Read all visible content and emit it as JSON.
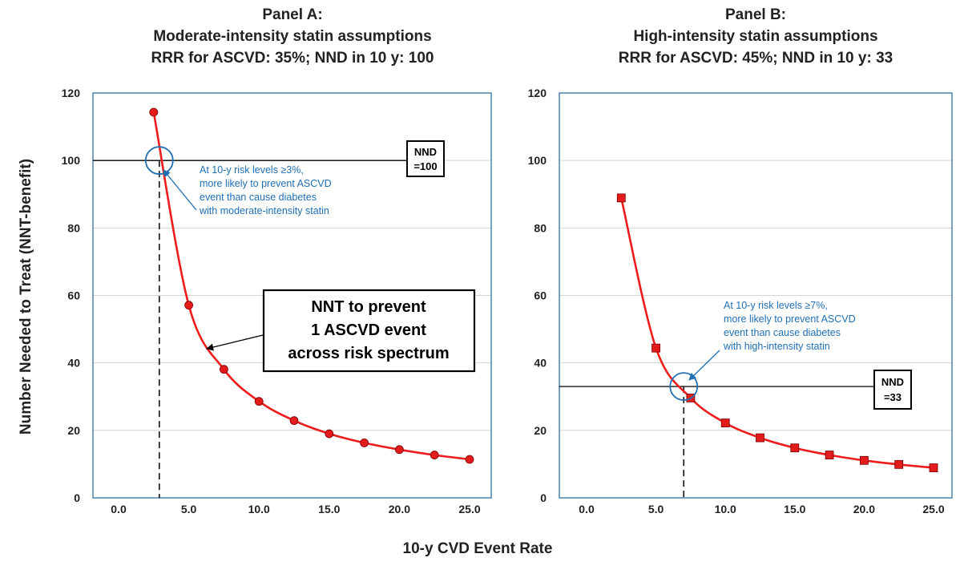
{
  "chart_data": [
    {
      "type": "line",
      "title_lines": [
        "Panel A:",
        "Moderate-intensity statin assumptions",
        "RRR for ASCVD: 35%; NND in 10 y: 100"
      ],
      "xlabel": "10-y CVD Event Rate",
      "ylabel": "Number Needed to Treat (NNT-benefit)",
      "xlim": [
        -2.5,
        26.5
      ],
      "ylim": [
        0,
        120
      ],
      "x_ticks": [
        0,
        5,
        10,
        15,
        20,
        25
      ],
      "x_tick_labels": [
        "0.0",
        "5.0",
        "10.0",
        "15.0",
        "20.0",
        "25.0"
      ],
      "y_ticks": [
        0,
        20,
        40,
        60,
        80,
        100,
        120
      ],
      "y_tick_labels": [
        "0",
        "20",
        "40",
        "60",
        "80",
        "100",
        "120"
      ],
      "grid": true,
      "marker": "circle",
      "series": [
        {
          "x": [
            2.5,
            5.0,
            7.5,
            10.0,
            12.5,
            15.0,
            17.5,
            20.0,
            22.5,
            25.0
          ],
          "y": [
            114.3,
            57.1,
            38.1,
            28.6,
            22.9,
            19.0,
            16.3,
            14.3,
            12.7,
            11.4
          ]
        }
      ],
      "reference_line": {
        "y": 100,
        "label_lines": [
          "NND",
          "=100"
        ]
      },
      "crossover": {
        "x": 2.9,
        "y": 100
      },
      "callout_lines": [
        "At 10-y risk levels ≥3%,",
        "more likely to prevent ASCVD",
        "event than cause diabetes",
        "with moderate-intensity statin"
      ],
      "box_annotation_lines": [
        "NNT to prevent",
        "1 ASCVD event",
        "across risk spectrum"
      ]
    },
    {
      "type": "line",
      "title_lines": [
        "Panel B:",
        "High-intensity statin assumptions",
        "RRR for ASCVD: 45%; NND in 10 y: 33"
      ],
      "xlim": [
        -2.5,
        26.5
      ],
      "ylim": [
        0,
        120
      ],
      "x_ticks": [
        0,
        5,
        10,
        15,
        20,
        25
      ],
      "x_tick_labels": [
        "0.0",
        "5.0",
        "10.0",
        "15.0",
        "20.0",
        "25.0"
      ],
      "y_ticks": [
        0,
        20,
        40,
        60,
        80,
        100,
        120
      ],
      "y_tick_labels": [
        "0",
        "20",
        "40",
        "60",
        "80",
        "100",
        "120"
      ],
      "grid": true,
      "marker": "square",
      "series": [
        {
          "x": [
            2.5,
            5.0,
            7.5,
            10.0,
            12.5,
            15.0,
            17.5,
            20.0,
            22.5,
            25.0
          ],
          "y": [
            88.9,
            44.4,
            29.6,
            22.2,
            17.8,
            14.8,
            12.7,
            11.1,
            9.9,
            8.9
          ]
        }
      ],
      "reference_line": {
        "y": 33,
        "label_lines": [
          "NND",
          "=33"
        ]
      },
      "crossover": {
        "x": 7.0,
        "y": 33
      },
      "callout_lines": [
        "At 10-y risk levels ≥7%,",
        "more likely to prevent ASCVD",
        "event than cause diabetes",
        "with high-intensity statin"
      ]
    }
  ],
  "colors": {
    "curve": "#ee1c1c",
    "marker": "#e41b1b",
    "plot_border": "#2e6ea6",
    "callout": "#1f6fb4",
    "grid": "#d4d4d4"
  }
}
